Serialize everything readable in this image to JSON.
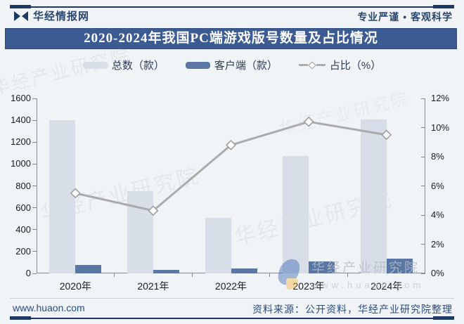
{
  "header": {
    "brand": "华经情报网",
    "slogan": "专业严谨 • 客观科学"
  },
  "title": "2020-2024年我国PC端游戏版号数量及占比情况",
  "colors": {
    "accent_navy": "#1f3864",
    "title_bar": "#3b5b92",
    "total_bar": "#d8dee8",
    "client_bar": "#5a76a4",
    "ratio_line": "#ababab",
    "background": "#f1f4f7"
  },
  "chart_data": {
    "type": "combo",
    "title": "2020-2024年我国PC端游戏版号数量及占比情况",
    "categories": [
      "2020年",
      "2021年",
      "2022年",
      "2023年",
      "2024年"
    ],
    "series": [
      {
        "name": "总数（款）",
        "chart": "bar",
        "axis": "left",
        "color": "#d8dee8",
        "values": [
          1400,
          755,
          510,
          1075,
          1410
        ]
      },
      {
        "name": "客户端（款）",
        "chart": "bar",
        "axis": "left",
        "color": "#5a76a4",
        "values": [
          78,
          33,
          45,
          112,
          132
        ]
      },
      {
        "name": "占比（%）",
        "chart": "line",
        "axis": "right",
        "color": "#ababab",
        "marker": "diamond",
        "values": [
          5.5,
          4.3,
          8.8,
          10.4,
          9.5
        ]
      }
    ],
    "left_axis": {
      "min": 0,
      "max": 1600,
      "step": 200
    },
    "right_axis": {
      "min": 0,
      "max": 12,
      "step": 2,
      "suffix": "%"
    },
    "legend_position": "top",
    "grid": false
  },
  "watermark": {
    "diagonal": "华经产业研究院",
    "brand": "华经产业研究院",
    "url": "www.huaon.com"
  },
  "footer": {
    "site": "www.huaon.com",
    "source": "资料来源：公开资料，华经产业研究院整理"
  }
}
